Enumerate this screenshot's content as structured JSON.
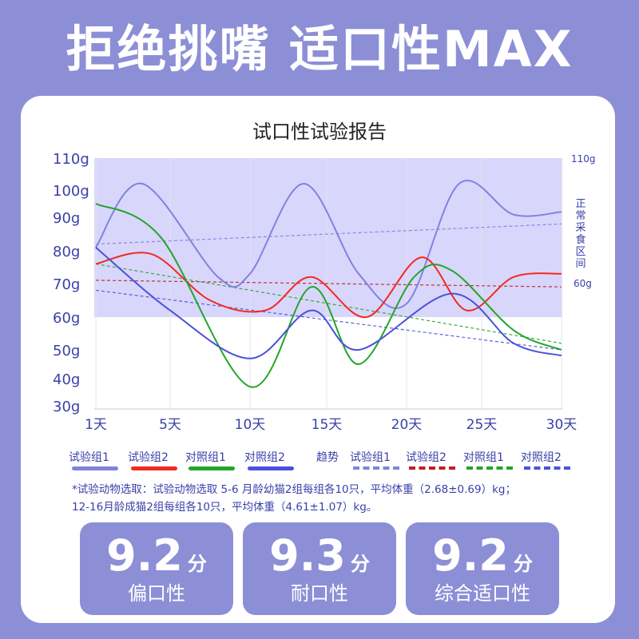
{
  "headline": "拒绝挑嘴 适口性MAX",
  "chart_data": {
    "type": "line",
    "title": "试口性试验报告",
    "y_ticks": [
      "110g",
      "100g",
      "90g",
      "80g",
      "70g",
      "60g",
      "50g",
      "40g",
      "30g"
    ],
    "y_tick_values": [
      110,
      100,
      90,
      80,
      70,
      60,
      50,
      40,
      30
    ],
    "x_ticks": [
      "1天",
      "5天",
      "10天",
      "15天",
      "20天",
      "25天",
      "30天"
    ],
    "x_tick_values": [
      1,
      5,
      10,
      15,
      20,
      25,
      30
    ],
    "xlim": [
      1,
      30
    ],
    "normal_range": {
      "label": "正常采食区间",
      "upper_label": "110g",
      "lower_label": "60g",
      "upper": 110,
      "lower": 60
    },
    "series": [
      {
        "name": "试验组1",
        "color": "#7f83de",
        "style": "solid",
        "x": [
          1,
          3.5,
          8,
          10,
          13.5,
          17,
          20,
          23.5,
          27,
          30
        ],
        "y": [
          81,
          102,
          72,
          73,
          102,
          73,
          64,
          102,
          91,
          92
        ]
      },
      {
        "name": "试验组2",
        "color": "#f22a1f",
        "style": "solid",
        "x": [
          1,
          4,
          7.5,
          11,
          14,
          17.5,
          21,
          24,
          27,
          30
        ],
        "y": [
          76,
          79,
          65,
          62,
          72,
          60,
          78,
          62,
          72,
          73
        ]
      },
      {
        "name": "对照组1",
        "color": "#23a52a",
        "style": "solid",
        "x": [
          1,
          4.5,
          10,
          14,
          17,
          20.5,
          23,
          27,
          30
        ],
        "y": [
          95,
          84,
          37,
          69,
          45,
          72,
          74,
          56,
          50
        ]
      },
      {
        "name": "对照组2",
        "color": "#4a52d9",
        "style": "solid",
        "x": [
          1,
          5,
          10,
          14,
          17,
          23,
          27,
          30
        ],
        "y": [
          81,
          62,
          47,
          62,
          50,
          67,
          52,
          48
        ]
      }
    ],
    "trend_label": "趋势",
    "trends": [
      {
        "name": "试验组1",
        "color": "#7f83de",
        "from": [
          1,
          82
        ],
        "to": [
          30,
          88
        ]
      },
      {
        "name": "试验组2",
        "color": "#c0202a",
        "from": [
          1,
          71
        ],
        "to": [
          30,
          69
        ]
      },
      {
        "name": "对照组1",
        "color": "#23a52a",
        "from": [
          1,
          76
        ],
        "to": [
          30,
          52
        ]
      },
      {
        "name": "对照组2",
        "color": "#4a52d9",
        "from": [
          1,
          68
        ],
        "to": [
          30,
          50
        ]
      }
    ]
  },
  "note": {
    "line1": "*试验动物选取：试验动物选取 5-6 月龄幼猫2组每组各10只，平均体重（2.68±0.69）kg；",
    "line2": "12-16月龄成猫2组每组各10只，平均体重（4.61±1.07）kg。"
  },
  "scores": [
    {
      "value": "9.2",
      "unit": "分",
      "label": "偏口性"
    },
    {
      "value": "9.3",
      "unit": "分",
      "label": "耐口性"
    },
    {
      "value": "9.2",
      "unit": "分",
      "label": "综合适口性"
    }
  ]
}
